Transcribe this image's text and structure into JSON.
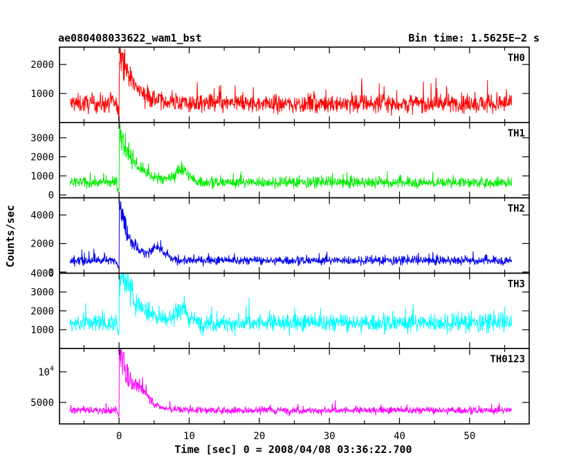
{
  "header": {
    "left_title": "ae080408033622_wam1_bst",
    "right_title": "Bin time: 1.5625E−2 s"
  },
  "chart_data": {
    "type": "line",
    "xlabel": "Time [sec] 0 = 2008/04/08 03:36:22.700",
    "ylabel": "Counts/sec",
    "xlim": [
      -8.5,
      58.5
    ],
    "x_ticks": [
      0,
      10,
      20,
      30,
      40,
      50
    ],
    "data_x_range": [
      -7.0,
      56.0
    ],
    "bin_time_s": 0.015625,
    "panels": [
      {
        "name": "TH0",
        "color": "#ff0000",
        "ylim": [
          0,
          2600
        ],
        "y_ticks": [
          {
            "v": 1000,
            "t": "1000"
          },
          {
            "v": 2000,
            "t": "2000"
          }
        ],
        "baseline": 650,
        "noise": 300,
        "burst_peak": 2500,
        "burst_decay": 2.0,
        "burst2_height": 0,
        "burst2_at": 0
      },
      {
        "name": "TH1",
        "color": "#00ee00",
        "ylim": [
          -150,
          3800
        ],
        "y_ticks": [
          {
            "v": 0,
            "t": "0"
          },
          {
            "v": 1000,
            "t": "1000"
          },
          {
            "v": 2000,
            "t": "2000"
          },
          {
            "v": 3000,
            "t": "3000"
          }
        ],
        "baseline": 650,
        "noise": 260,
        "burst_peak": 3600,
        "burst_decay": 2.2,
        "burst2_height": 900,
        "burst2_at": 9
      },
      {
        "name": "TH2",
        "color": "#0000ee",
        "ylim": [
          -80,
          5200
        ],
        "y_ticks": [
          {
            "v": 0,
            "t": "0"
          },
          {
            "v": 2000,
            "t": "2000"
          },
          {
            "v": 4000,
            "t": "4000"
          }
        ],
        "baseline": 800,
        "noise": 280,
        "burst_peak": 4900,
        "burst_decay": 1.8,
        "burst2_height": 900,
        "burst2_at": 5.5
      },
      {
        "name": "TH3",
        "color": "#00ffff",
        "ylim": [
          0,
          4000
        ],
        "y_ticks": [
          {
            "v": 1000,
            "t": "1000"
          },
          {
            "v": 2000,
            "t": "2000"
          },
          {
            "v": 3000,
            "t": "3000"
          },
          {
            "v": 4000,
            "t": "4000"
          }
        ],
        "baseline": 1350,
        "noise": 450,
        "burst_peak": 4000,
        "burst_decay": 2.5,
        "burst2_height": 700,
        "burst2_at": 9
      },
      {
        "name": "TH0123",
        "color": "#ff00ff",
        "ylim": [
          1500,
          13800
        ],
        "y_ticks": [
          {
            "v": 5000,
            "t": "5000"
          },
          {
            "v": 10000,
            "t": "10^4"
          }
        ],
        "baseline": 3700,
        "noise": 550,
        "burst_peak": 13000,
        "burst_decay": 2.0,
        "burst2_height": 2200,
        "burst2_at": 3.5
      }
    ]
  }
}
